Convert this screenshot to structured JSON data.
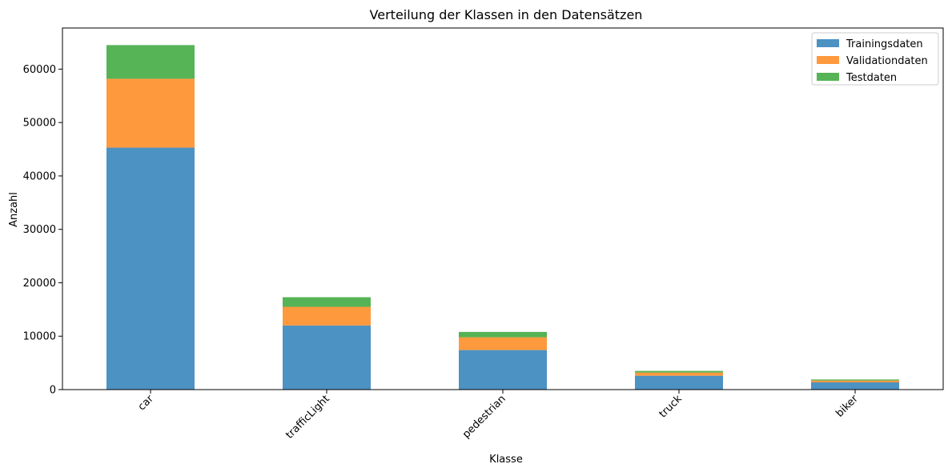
{
  "chart_data": {
    "type": "bar",
    "stacked": true,
    "title": "Verteilung der Klassen in den Datensätzen",
    "xlabel": "Klasse",
    "ylabel": "Anzahl",
    "categories": [
      "car",
      "trafficLight",
      "pedestrian",
      "truck",
      "biker"
    ],
    "series": [
      {
        "name": "Trainingsdaten",
        "color": "#4c92c3",
        "values": [
          45300,
          12000,
          7400,
          2600,
          1350
        ]
      },
      {
        "name": "Validationdaten",
        "color": "#ff993e",
        "values": [
          12900,
          3500,
          2400,
          600,
          350
        ]
      },
      {
        "name": "Testdaten",
        "color": "#56b356",
        "values": [
          6300,
          1800,
          1000,
          300,
          200
        ]
      }
    ],
    "ylim": [
      0,
      67700
    ],
    "yticks": [
      0,
      10000,
      20000,
      30000,
      40000,
      50000,
      60000
    ],
    "ytick_labels": [
      "0",
      "10000",
      "20000",
      "30000",
      "40000",
      "50000",
      "60000"
    ],
    "xtick_rotation": 45,
    "legend_position": "top-right",
    "grid": false
  }
}
